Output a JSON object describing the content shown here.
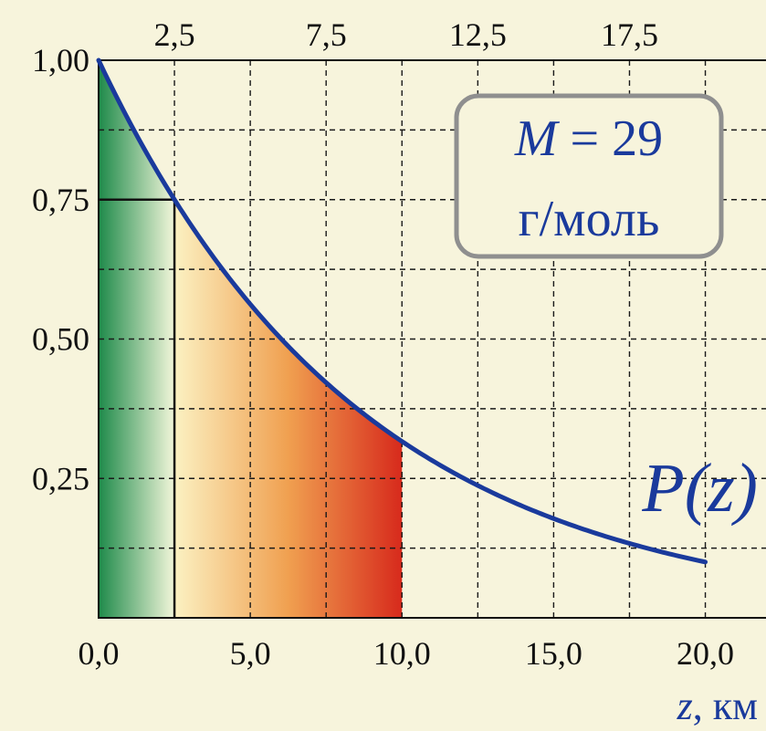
{
  "chart_data": {
    "type": "line",
    "x": [
      0,
      2.5,
      5,
      7.5,
      10,
      12.5,
      15,
      17.5,
      20
    ],
    "y": [
      1.0,
      0.75,
      0.56,
      0.42,
      0.32,
      0.24,
      0.18,
      0.135,
      0.1
    ],
    "xlim": [
      0,
      22
    ],
    "ylim": [
      0,
      1.0
    ],
    "bottom_ticks": [
      "0,0",
      "5,0",
      "10,0",
      "15,0",
      "20,0"
    ],
    "top_ticks": [
      "2,5",
      "7,5",
      "12,5",
      "17,5"
    ],
    "y_ticks": [
      "1,00",
      "0,75",
      "0,50",
      "0,25"
    ],
    "xlabel_var": "z",
    "xlabel_unit": ", км",
    "series": [
      {
        "label": "P(z)",
        "color": "#1a3a9c"
      }
    ],
    "annotation": {
      "var": "M",
      "value": " = 29",
      "unit": "г/моль"
    },
    "marker": {
      "x": 2.5,
      "y": 0.75
    },
    "fills": [
      {
        "from": 0,
        "to": 2.5,
        "colors": [
          "#1e8a4a",
          "#f2f6da"
        ]
      },
      {
        "from": 2.5,
        "to": 10,
        "colors": [
          "#fbf1c2",
          "#f0a050",
          "#d72a1c"
        ]
      }
    ],
    "grid": true
  }
}
